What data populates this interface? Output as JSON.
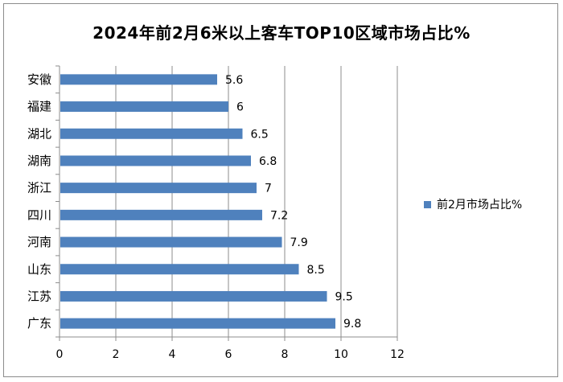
{
  "chart_data": {
    "type": "bar",
    "orientation": "horizontal",
    "title": "2024年前2月6米以上客车TOP10区域市场占比%",
    "categories": [
      "安徽",
      "福建",
      "湖北",
      "湖南",
      "浙江",
      "四川",
      "河南",
      "山东",
      "江苏",
      "广东"
    ],
    "series": [
      {
        "name": "前2月市场占比%",
        "values": [
          5.6,
          6,
          6.5,
          6.8,
          7,
          7.2,
          7.9,
          8.5,
          9.5,
          9.8
        ],
        "color": "#4F81BD"
      }
    ],
    "xlim": [
      0,
      12
    ],
    "xticks": [
      0,
      2,
      4,
      6,
      8,
      10,
      12
    ],
    "grid": "vertical",
    "legend_position": "right"
  }
}
